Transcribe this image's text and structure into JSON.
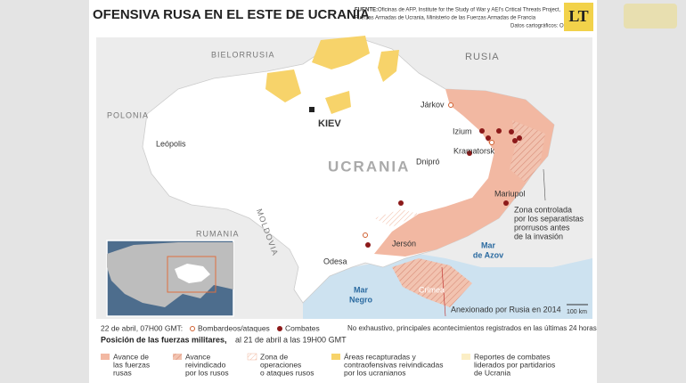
{
  "header": {
    "title": "OFENSIVA RUSA EN EL ESTE DE UCRANIA",
    "source_label": "FUENTE:",
    "source_lines": [
      "Oficinas de AFP, Institute for the Study of War y AEI's Critical Threats Project,",
      "Fuerzas Armadas de Ucrania,  Ministerio de las Fuerzas Armadas de Francia",
      "Datos cartográficos: OSM"
    ],
    "logo": "LT"
  },
  "map": {
    "countries": {
      "belarus": "BIELORRUSIA",
      "russia": "RUSIA",
      "poland": "POLONIA",
      "ukraine": "UCRANIA",
      "moldova": "MOLDOVIA",
      "romania": "RUMANIA"
    },
    "cities": {
      "kiev": "KIEV",
      "kharkiv": "Járkov",
      "izium": "Izium",
      "kramatorsk": "Kramatorsk",
      "dnipro": "Dnipró",
      "lviv": "Leópolis",
      "odesa": "Odesa",
      "kherson": "Jersón",
      "mariupol": "Mariupol"
    },
    "seas": {
      "azov": [
        "Mar",
        "de Azov"
      ],
      "black": [
        "Mar",
        "Negro"
      ]
    },
    "crimea": "Crimea",
    "annotations": {
      "separatists": [
        "Zona controlada",
        "por los separatistas",
        "prorrusos antes",
        "de la invasión"
      ],
      "annexed": "Anexionado por Rusia en 2014",
      "scale": "100 km"
    }
  },
  "legend": {
    "date": "22 de abril, 07H00 GMT:",
    "strikes": "Bombardeos/ataques",
    "combat": "Combates",
    "position_bold": "Posición de las fuerzas militares,",
    "position_rest": "al 21 de abril a las 19H00 GMT",
    "note": "No exhaustivo, principales acontecimientos registrados en las últimas 24 horas",
    "items": [
      [
        "Avance de",
        "las fuerzas",
        "rusas"
      ],
      [
        "Avance",
        "reivindicado",
        "por los rusos"
      ],
      [
        "Zona de",
        "operaciones",
        "o ataques rusos"
      ],
      [
        "Áreas recapturadas y",
        "contraofensivas reivindicadas",
        "por los ucranianos"
      ],
      [
        "Reportes de combates",
        "liderados por partidarios",
        "de Ucrania"
      ]
    ]
  }
}
